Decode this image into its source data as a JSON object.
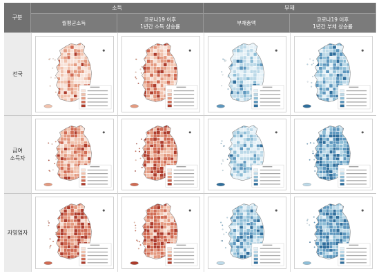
{
  "header": {
    "corner": "구분",
    "groups": {
      "income": "소득",
      "debt": "부채"
    },
    "columns": {
      "avg_income": "월평균소득",
      "income_growth_l1": "코로나19 이후",
      "income_growth_l2": "1년간 소득 상승률",
      "total_debt": "부채총액",
      "debt_growth_l1": "코로나19 이후",
      "debt_growth_l2": "1년간 부채 상승률"
    }
  },
  "rows": [
    {
      "label_l1": "전국",
      "label_l2": ""
    },
    {
      "label_l1": "급여",
      "label_l2": "소득자"
    },
    {
      "label_l1": "자영업자",
      "label_l2": ""
    }
  ],
  "colors": {
    "income_scale": [
      "#f8e3d9",
      "#f1c2ad",
      "#e49a80",
      "#d06a52",
      "#ad3b2b"
    ],
    "debt_scale": [
      "#e5f1f7",
      "#bcd9e8",
      "#8dbdd6",
      "#5c96bd",
      "#2f6e9c"
    ]
  },
  "maps": [
    [
      "income-light",
      "income-medium",
      "debt-light",
      "debt-medium"
    ],
    [
      "income-medium",
      "income-dark",
      "debt-light",
      "debt-dark"
    ],
    [
      "income-dark",
      "income-dark",
      "debt-medium",
      "debt-dark"
    ]
  ]
}
